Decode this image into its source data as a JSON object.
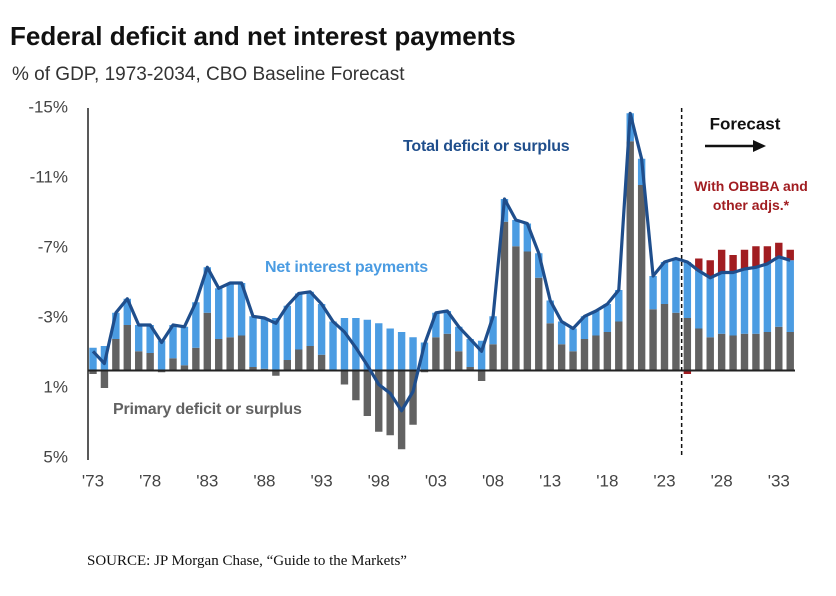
{
  "chart_data": {
    "type": "stacked-bar-line",
    "title": "Federal deficit and net interest payments",
    "subtitle": "% of GDP, 1973-2034, CBO Baseline Forecast",
    "forecast_label": "Forecast",
    "source": "SOURCE: JP Morgan Chase, “Guide to the Markets”",
    "categories": [
      "'73",
      null,
      null,
      null,
      null,
      "'78",
      null,
      null,
      null,
      null,
      "'83",
      null,
      null,
      null,
      null,
      "'88",
      null,
      null,
      null,
      null,
      "'93",
      null,
      null,
      null,
      null,
      "'98",
      null,
      null,
      null,
      null,
      "'03",
      null,
      null,
      null,
      null,
      "'08",
      null,
      null,
      null,
      null,
      "'13",
      null,
      null,
      null,
      null,
      "'18",
      null,
      null,
      null,
      null,
      "'23",
      null,
      null,
      null,
      null,
      "'28",
      null,
      null,
      null,
      null,
      "'33",
      null
    ],
    "ylim": [
      -15,
      5
    ],
    "y_inverted": true,
    "yticks": [
      {
        "value": -15,
        "label": "-15%"
      },
      {
        "value": -11,
        "label": "-11%"
      },
      {
        "value": -7,
        "label": "-7%"
      },
      {
        "value": -3,
        "label": "-3%"
      },
      {
        "value": 1,
        "label": "1%"
      },
      {
        "value": 5,
        "label": "5%"
      }
    ],
    "grid": false,
    "series": [
      {
        "name": "Primary deficit or surplus",
        "kind": "bar",
        "color": "#626262",
        "values": [
          0.2,
          1.0,
          -1.8,
          -2.6,
          -1.1,
          -1.0,
          0.1,
          -0.7,
          -0.3,
          -1.3,
          -3.3,
          -1.8,
          -1.9,
          -2.0,
          -0.2,
          -0.1,
          0.3,
          -0.6,
          -1.2,
          -1.4,
          -0.9,
          0.0,
          0.8,
          1.7,
          2.6,
          3.5,
          3.7,
          4.5,
          3.1,
          0.1,
          -1.9,
          -2.1,
          -1.1,
          -0.2,
          0.6,
          -1.5,
          -8.5,
          -7.1,
          -6.8,
          -5.3,
          -2.7,
          -1.5,
          -1.1,
          -1.8,
          -2.0,
          -2.2,
          -2.8,
          -13.1,
          -10.6,
          -3.5,
          -3.8,
          -3.3,
          -3.0,
          -2.4,
          -1.9,
          -2.1,
          -2.0,
          -2.1,
          -2.1,
          -2.2,
          -2.5,
          -2.2
        ]
      },
      {
        "name": "Net interest payments",
        "kind": "bar",
        "color": "#4b9ce2",
        "values": [
          -1.3,
          -1.4,
          -1.5,
          -1.5,
          -1.5,
          -1.6,
          -1.7,
          -1.9,
          -2.2,
          -2.6,
          -2.6,
          -2.9,
          -3.1,
          -3.0,
          -2.9,
          -2.9,
          -3.0,
          -3.1,
          -3.2,
          -3.1,
          -2.9,
          -2.8,
          -3.0,
          -3.0,
          -2.9,
          -2.7,
          -2.4,
          -2.2,
          -1.9,
          -1.6,
          -1.4,
          -1.3,
          -1.4,
          -1.6,
          -1.7,
          -1.6,
          -1.3,
          -1.5,
          -1.6,
          -1.4,
          -1.3,
          -1.3,
          -1.3,
          -1.3,
          -1.4,
          -1.6,
          -1.8,
          -1.6,
          -1.5,
          -1.9,
          -2.4,
          -3.1,
          -3.2,
          -3.3,
          -3.4,
          -3.5,
          -3.6,
          -3.7,
          -3.8,
          -3.9,
          -4.0,
          -4.1
        ]
      },
      {
        "name": "With OBBBA and other adjs.*",
        "kind": "bar",
        "color": "#a11d21",
        "values": [
          null,
          null,
          null,
          null,
          null,
          null,
          null,
          null,
          null,
          null,
          null,
          null,
          null,
          null,
          null,
          null,
          null,
          null,
          null,
          null,
          null,
          null,
          null,
          null,
          null,
          null,
          null,
          null,
          null,
          null,
          null,
          null,
          null,
          null,
          null,
          null,
          null,
          null,
          null,
          null,
          null,
          null,
          null,
          null,
          null,
          null,
          null,
          null,
          null,
          null,
          null,
          null,
          0.2,
          -0.7,
          -1.0,
          -1.3,
          -1.0,
          -1.1,
          -1.2,
          -1.0,
          -0.8,
          -0.6
        ]
      },
      {
        "name": "Total deficit or surplus",
        "kind": "line",
        "color": "#1f4e8c",
        "values": [
          -1.1,
          -0.4,
          -3.3,
          -4.1,
          -2.6,
          -2.6,
          -1.6,
          -2.6,
          -2.5,
          -3.9,
          -5.9,
          -4.7,
          -5.0,
          -5.0,
          -3.1,
          -3.0,
          -2.7,
          -3.7,
          -4.4,
          -4.5,
          -3.8,
          -2.8,
          -2.2,
          -1.3,
          -0.3,
          0.8,
          1.3,
          2.3,
          1.2,
          -1.5,
          -3.3,
          -3.4,
          -2.5,
          -1.8,
          -1.1,
          -3.1,
          -9.8,
          -8.6,
          -8.4,
          -6.7,
          -4.0,
          -2.8,
          -2.4,
          -3.1,
          -3.4,
          -3.8,
          -4.6,
          -14.7,
          -12.1,
          -5.4,
          -6.2,
          -6.4,
          -6.2,
          -5.7,
          -5.3,
          -5.6,
          -5.6,
          -5.8,
          -5.9,
          -6.1,
          -6.5,
          -6.3
        ]
      }
    ]
  }
}
